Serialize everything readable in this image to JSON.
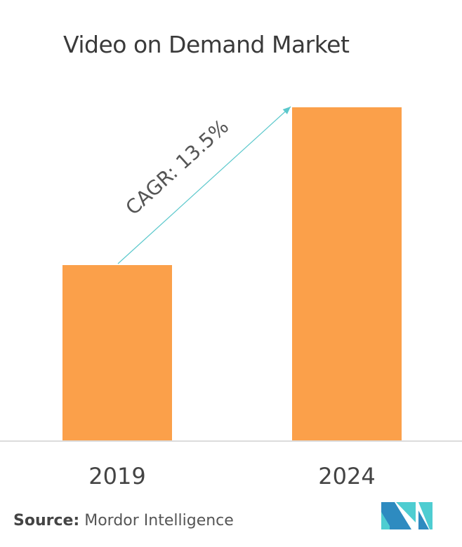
{
  "chart_data": {
    "type": "bar",
    "title": "Video on Demand Market",
    "categories": [
      "2019",
      "2024"
    ],
    "values": [
      1.0,
      1.9
    ],
    "ylim": [
      0,
      1.9
    ],
    "xlabel": "",
    "ylabel": "",
    "grid": false,
    "annotation": "CAGR: 13.5%",
    "bar_color": "#FBA04A",
    "arrow_color": "#5BC8CC"
  },
  "source": {
    "label": "Source:",
    "text": "Mordor Intelligence"
  },
  "logo": {
    "name": "mordor-intelligence-logo",
    "colors": [
      "#2E8BC0",
      "#4ECDD1"
    ]
  }
}
